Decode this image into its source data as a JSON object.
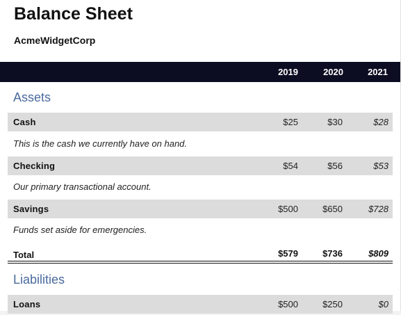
{
  "document": {
    "title": "Balance Sheet",
    "company": "AcmeWidgetCorp"
  },
  "header": {
    "years": [
      "2019",
      "2020",
      "2021"
    ]
  },
  "sections": {
    "assets": {
      "title": "Assets",
      "rows": [
        {
          "label": "Cash",
          "values": [
            "$25",
            "$30",
            "$28"
          ],
          "note": "This is the cash we currently have on hand."
        },
        {
          "label": "Checking",
          "values": [
            "$54",
            "$56",
            "$53"
          ],
          "note": "Our primary transactional account."
        },
        {
          "label": "Savings",
          "values": [
            "$500",
            "$650",
            "$728"
          ],
          "note": "Funds set aside for emergencies."
        }
      ],
      "total": {
        "label": "Total",
        "values": [
          "$579",
          "$736",
          "$809"
        ]
      }
    },
    "liabilities": {
      "title": "Liabilities",
      "rows": [
        {
          "label": "Loans",
          "values": [
            "$500",
            "$250",
            "$0"
          ]
        }
      ]
    }
  },
  "colors": {
    "header_bar": "#0c0c22",
    "section_title": "#4a6a9e",
    "row_background": "#dcdcdc"
  }
}
